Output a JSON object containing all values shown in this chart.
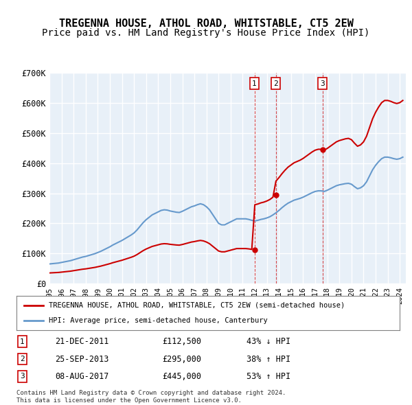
{
  "title": "TREGENNA HOUSE, ATHOL ROAD, WHITSTABLE, CT5 2EW",
  "subtitle": "Price paid vs. HM Land Registry's House Price Index (HPI)",
  "title_fontsize": 11,
  "subtitle_fontsize": 10,
  "background_color": "#ffffff",
  "plot_bg_color": "#e8f0f8",
  "grid_color": "#ffffff",
  "ylim": [
    0,
    700000
  ],
  "yticks": [
    0,
    100000,
    200000,
    300000,
    400000,
    500000,
    600000,
    700000
  ],
  "ytick_labels": [
    "£0",
    "£100K",
    "£200K",
    "£300K",
    "£400K",
    "£500K",
    "£600K",
    "£700K"
  ],
  "xlim_start": 1995.0,
  "xlim_end": 2024.5,
  "transactions": [
    {
      "num": 1,
      "year": 2011.97,
      "price": 112500,
      "date": "21-DEC-2011",
      "amount": "£112,500",
      "pct": "43% ↓ HPI"
    },
    {
      "num": 2,
      "year": 2013.73,
      "price": 295000,
      "date": "25-SEP-2013",
      "amount": "£295,000",
      "pct": "38% ↑ HPI"
    },
    {
      "num": 3,
      "year": 2017.6,
      "price": 445000,
      "date": "08-AUG-2017",
      "amount": "£445,000",
      "pct": "53% ↑ HPI"
    }
  ],
  "hpi_years": [
    1995,
    1995.25,
    1995.5,
    1995.75,
    1996,
    1996.25,
    1996.5,
    1996.75,
    1997,
    1997.25,
    1997.5,
    1997.75,
    1998,
    1998.25,
    1998.5,
    1998.75,
    1999,
    1999.25,
    1999.5,
    1999.75,
    2000,
    2000.25,
    2000.5,
    2000.75,
    2001,
    2001.25,
    2001.5,
    2001.75,
    2002,
    2002.25,
    2002.5,
    2002.75,
    2003,
    2003.25,
    2003.5,
    2003.75,
    2004,
    2004.25,
    2004.5,
    2004.75,
    2005,
    2005.25,
    2005.5,
    2005.75,
    2006,
    2006.25,
    2006.5,
    2006.75,
    2007,
    2007.25,
    2007.5,
    2007.75,
    2008,
    2008.25,
    2008.5,
    2008.75,
    2009,
    2009.25,
    2009.5,
    2009.75,
    2010,
    2010.25,
    2010.5,
    2010.75,
    2011,
    2011.25,
    2011.5,
    2011.75,
    2012,
    2012.25,
    2012.5,
    2012.75,
    2013,
    2013.25,
    2013.5,
    2013.75,
    2014,
    2014.25,
    2014.5,
    2014.75,
    2015,
    2015.25,
    2015.5,
    2015.75,
    2016,
    2016.25,
    2016.5,
    2016.75,
    2017,
    2017.25,
    2017.5,
    2017.75,
    2018,
    2018.25,
    2018.5,
    2018.75,
    2019,
    2019.25,
    2019.5,
    2019.75,
    2020,
    2020.25,
    2020.5,
    2020.75,
    2021,
    2021.25,
    2021.5,
    2021.75,
    2022,
    2022.25,
    2022.5,
    2022.75,
    2023,
    2023.25,
    2023.5,
    2023.75,
    2024,
    2024.25
  ],
  "hpi_values": [
    65000,
    66000,
    67000,
    68000,
    70000,
    72000,
    74000,
    76000,
    79000,
    82000,
    85000,
    88000,
    90000,
    93000,
    96000,
    99000,
    103000,
    107000,
    112000,
    117000,
    122000,
    128000,
    133000,
    138000,
    143000,
    149000,
    155000,
    161000,
    168000,
    178000,
    190000,
    202000,
    212000,
    220000,
    228000,
    233000,
    238000,
    243000,
    245000,
    244000,
    241000,
    239000,
    237000,
    236000,
    240000,
    245000,
    250000,
    255000,
    258000,
    262000,
    265000,
    262000,
    255000,
    245000,
    230000,
    215000,
    200000,
    195000,
    195000,
    200000,
    205000,
    210000,
    215000,
    215000,
    215000,
    215000,
    213000,
    210000,
    208000,
    210000,
    213000,
    215000,
    218000,
    222000,
    228000,
    235000,
    243000,
    252000,
    260000,
    267000,
    272000,
    277000,
    280000,
    283000,
    287000,
    292000,
    297000,
    302000,
    306000,
    308000,
    308000,
    306000,
    310000,
    315000,
    320000,
    325000,
    328000,
    330000,
    332000,
    333000,
    330000,
    322000,
    315000,
    318000,
    325000,
    338000,
    358000,
    378000,
    393000,
    405000,
    415000,
    420000,
    420000,
    418000,
    415000,
    413000,
    415000,
    420000
  ],
  "red_line_color": "#cc0000",
  "blue_line_color": "#6699cc",
  "legend_label_red": "TREGENNA HOUSE, ATHOL ROAD, WHITSTABLE, CT5 2EW (semi-detached house)",
  "legend_label_blue": "HPI: Average price, semi-detached house, Canterbury",
  "footer1": "Contains HM Land Registry data © Crown copyright and database right 2024.",
  "footer2": "This data is licensed under the Open Government Licence v3.0.",
  "xtick_years": [
    1995,
    1996,
    1997,
    1998,
    1999,
    2000,
    2001,
    2002,
    2003,
    2004,
    2005,
    2006,
    2007,
    2008,
    2009,
    2010,
    2011,
    2012,
    2013,
    2014,
    2015,
    2016,
    2017,
    2018,
    2019,
    2020,
    2021,
    2022,
    2023,
    2024
  ]
}
